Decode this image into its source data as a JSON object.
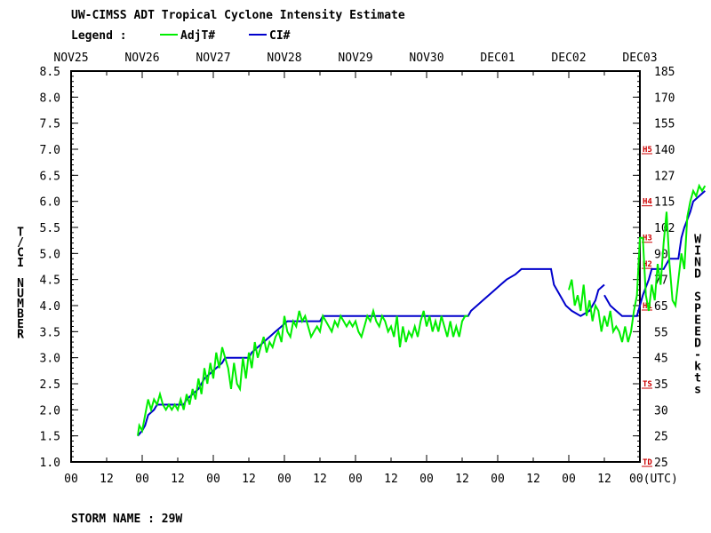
{
  "chart_data": {
    "type": "line",
    "title": "UW-CIMSS ADT Tropical Cyclone Intensity Estimate",
    "legend": {
      "label": "Legend :",
      "position": "top-left",
      "entries": [
        {
          "name": "AdjT#",
          "color": "#00ee00"
        },
        {
          "name": "CI#",
          "color": "#0000cc"
        }
      ]
    },
    "x_date_labels": [
      "NOV25",
      "NOV26",
      "NOV27",
      "NOV28",
      "NOV29",
      "NOV30",
      "DEC01",
      "DEC02",
      "DEC03"
    ],
    "x_hour_labels": [
      "00",
      "12",
      "00",
      "12",
      "00",
      "12",
      "00",
      "12",
      "00",
      "12",
      "00",
      "12",
      "00",
      "12",
      "00",
      "12"
    ],
    "x_last_label": "00(UTC)",
    "xlim_hours": [
      0,
      192
    ],
    "ylabel": "T/CI NUMBER",
    "y2label": "WIND SPEED-kts",
    "ylim": [
      1.0,
      8.5
    ],
    "yticks": [
      "1.0",
      "1.5",
      "2.0",
      "2.5",
      "3.0",
      "3.5",
      "4.0",
      "4.5",
      "5.0",
      "5.5",
      "6.0",
      "6.5",
      "7.0",
      "7.5",
      "8.0",
      "8.5"
    ],
    "y2ticks": [
      {
        "t": 1.0,
        "label": "25"
      },
      {
        "t": 1.5,
        "label": "25"
      },
      {
        "t": 2.0,
        "label": "30"
      },
      {
        "t": 2.5,
        "label": "35"
      },
      {
        "t": 3.0,
        "label": "45"
      },
      {
        "t": 3.5,
        "label": "55"
      },
      {
        "t": 4.0,
        "label": "65"
      },
      {
        "t": 4.5,
        "label": "77"
      },
      {
        "t": 5.0,
        "label": "90"
      },
      {
        "t": 5.5,
        "label": "102"
      },
      {
        "t": 6.0,
        "label": "115"
      },
      {
        "t": 6.5,
        "label": "127"
      },
      {
        "t": 7.0,
        "label": "140"
      },
      {
        "t": 7.5,
        "label": "155"
      },
      {
        "t": 8.0,
        "label": "170"
      },
      {
        "t": 8.5,
        "label": "185"
      }
    ],
    "category_marks": [
      {
        "t": 1.0,
        "label": "TD"
      },
      {
        "t": 2.5,
        "label": "TS"
      },
      {
        "t": 4.0,
        "label": "H1"
      },
      {
        "t": 4.8,
        "label": "H2"
      },
      {
        "t": 5.3,
        "label": "H3"
      },
      {
        "t": 6.0,
        "label": "H4"
      },
      {
        "t": 7.0,
        "label": "H5"
      }
    ],
    "grid": false,
    "series": [
      {
        "name": "AdjT#",
        "color": "#00ee00",
        "points": [
          [
            22.5,
            1.5
          ],
          [
            23,
            1.7
          ],
          [
            24,
            1.6
          ],
          [
            25,
            1.9
          ],
          [
            26,
            2.2
          ],
          [
            27,
            2.0
          ],
          [
            28,
            2.2
          ],
          [
            29,
            2.1
          ],
          [
            30,
            2.3
          ],
          [
            31,
            2.1
          ],
          [
            32,
            2.0
          ],
          [
            33,
            2.1
          ],
          [
            34,
            2.0
          ],
          [
            35,
            2.1
          ],
          [
            36,
            2.0
          ],
          [
            37,
            2.2
          ],
          [
            38,
            2.0
          ],
          [
            39,
            2.3
          ],
          [
            40,
            2.1
          ],
          [
            41,
            2.4
          ],
          [
            42,
            2.2
          ],
          [
            43,
            2.6
          ],
          [
            44,
            2.3
          ],
          [
            45,
            2.8
          ],
          [
            46,
            2.5
          ],
          [
            47,
            2.9
          ],
          [
            48,
            2.6
          ],
          [
            49,
            3.1
          ],
          [
            50,
            2.8
          ],
          [
            51,
            3.2
          ],
          [
            52,
            3.0
          ],
          [
            53,
            2.8
          ],
          [
            54,
            2.4
          ],
          [
            55,
            2.9
          ],
          [
            56,
            2.5
          ],
          [
            57,
            2.4
          ],
          [
            58,
            3.0
          ],
          [
            59,
            2.6
          ],
          [
            60,
            3.1
          ],
          [
            61,
            2.8
          ],
          [
            62,
            3.3
          ],
          [
            63,
            3.0
          ],
          [
            64,
            3.2
          ],
          [
            65,
            3.4
          ],
          [
            66,
            3.1
          ],
          [
            67,
            3.3
          ],
          [
            68,
            3.2
          ],
          [
            69,
            3.4
          ],
          [
            70,
            3.5
          ],
          [
            71,
            3.3
          ],
          [
            72,
            3.8
          ],
          [
            73,
            3.5
          ],
          [
            74,
            3.4
          ],
          [
            75,
            3.7
          ],
          [
            76,
            3.6
          ],
          [
            77,
            3.9
          ],
          [
            78,
            3.7
          ],
          [
            79,
            3.8
          ],
          [
            80,
            3.6
          ],
          [
            81,
            3.4
          ],
          [
            82,
            3.5
          ],
          [
            83,
            3.6
          ],
          [
            84,
            3.5
          ],
          [
            85,
            3.8
          ],
          [
            86,
            3.7
          ],
          [
            87,
            3.6
          ],
          [
            88,
            3.5
          ],
          [
            89,
            3.7
          ],
          [
            90,
            3.6
          ],
          [
            91,
            3.8
          ],
          [
            92,
            3.7
          ],
          [
            93,
            3.6
          ],
          [
            94,
            3.7
          ],
          [
            95,
            3.6
          ],
          [
            96,
            3.7
          ],
          [
            97,
            3.5
          ],
          [
            98,
            3.4
          ],
          [
            99,
            3.6
          ],
          [
            100,
            3.8
          ],
          [
            101,
            3.7
          ],
          [
            102,
            3.9
          ],
          [
            103,
            3.7
          ],
          [
            104,
            3.6
          ],
          [
            105,
            3.8
          ],
          [
            106,
            3.7
          ],
          [
            107,
            3.5
          ],
          [
            108,
            3.6
          ],
          [
            109,
            3.4
          ],
          [
            110,
            3.8
          ],
          [
            111,
            3.2
          ],
          [
            112,
            3.6
          ],
          [
            113,
            3.3
          ],
          [
            114,
            3.5
          ],
          [
            115,
            3.4
          ],
          [
            116,
            3.6
          ],
          [
            117,
            3.4
          ],
          [
            118,
            3.7
          ],
          [
            119,
            3.9
          ],
          [
            120,
            3.6
          ],
          [
            121,
            3.8
          ],
          [
            122,
            3.5
          ],
          [
            123,
            3.7
          ],
          [
            124,
            3.5
          ],
          [
            125,
            3.8
          ],
          [
            126,
            3.6
          ],
          [
            127,
            3.4
          ],
          [
            128,
            3.7
          ],
          [
            129,
            3.4
          ],
          [
            130,
            3.6
          ],
          [
            131,
            3.4
          ],
          [
            132,
            3.7
          ],
          [
            133,
            3.8
          ],
          [
            134,
            3.8
          ]
        ],
        "points_late": [
          [
            168,
            4.3
          ],
          [
            169,
            4.5
          ],
          [
            170,
            4.0
          ],
          [
            171,
            4.2
          ],
          [
            172,
            3.9
          ],
          [
            173,
            4.4
          ],
          [
            174,
            3.8
          ],
          [
            175,
            4.1
          ],
          [
            176,
            3.7
          ],
          [
            177,
            4.0
          ],
          [
            178,
            3.9
          ],
          [
            179,
            3.5
          ],
          [
            180,
            3.8
          ],
          [
            181,
            3.6
          ],
          [
            182,
            3.9
          ],
          [
            183,
            3.5
          ],
          [
            184,
            3.6
          ],
          [
            185,
            3.5
          ],
          [
            186,
            3.3
          ],
          [
            187,
            3.6
          ],
          [
            188,
            3.3
          ],
          [
            189,
            3.5
          ],
          [
            190,
            3.9
          ],
          [
            191,
            4.2
          ],
          [
            192,
            5.3
          ],
          [
            193,
            5.3
          ],
          [
            194,
            4.2
          ],
          [
            195,
            3.9
          ],
          [
            196,
            4.4
          ],
          [
            197,
            4.1
          ],
          [
            198,
            4.8
          ],
          [
            199,
            4.4
          ],
          [
            200,
            5.2
          ],
          [
            201,
            5.8
          ],
          [
            202,
            4.8
          ],
          [
            203,
            4.1
          ],
          [
            204,
            4.0
          ],
          [
            205,
            4.5
          ],
          [
            206,
            5.0
          ],
          [
            207,
            4.7
          ],
          [
            208,
            5.7
          ],
          [
            209,
            6.0
          ],
          [
            210,
            6.2
          ],
          [
            211,
            6.1
          ],
          [
            212,
            6.3
          ],
          [
            213,
            6.2
          ],
          [
            214,
            6.3
          ]
        ]
      },
      {
        "name": "CI#",
        "color": "#0000cc",
        "points": [
          [
            22.5,
            1.5
          ],
          [
            24,
            1.6
          ],
          [
            25,
            1.7
          ],
          [
            26,
            1.9
          ],
          [
            28,
            2.0
          ],
          [
            29,
            2.1
          ],
          [
            38,
            2.1
          ],
          [
            39,
            2.2
          ],
          [
            41,
            2.3
          ],
          [
            43,
            2.4
          ],
          [
            45,
            2.6
          ],
          [
            47,
            2.7
          ],
          [
            49,
            2.8
          ],
          [
            51,
            2.9
          ],
          [
            52,
            3.0
          ],
          [
            60,
            3.0
          ],
          [
            61,
            3.1
          ],
          [
            63,
            3.2
          ],
          [
            65,
            3.3
          ],
          [
            67,
            3.4
          ],
          [
            69,
            3.5
          ],
          [
            71,
            3.6
          ],
          [
            73,
            3.7
          ],
          [
            84,
            3.7
          ],
          [
            85,
            3.8
          ],
          [
            134,
            3.8
          ],
          [
            135,
            3.9
          ],
          [
            137,
            4.0
          ],
          [
            139,
            4.1
          ],
          [
            141,
            4.2
          ],
          [
            143,
            4.3
          ],
          [
            145,
            4.4
          ],
          [
            147,
            4.5
          ],
          [
            150,
            4.6
          ],
          [
            152,
            4.7
          ],
          [
            162,
            4.7
          ],
          [
            163,
            4.4
          ],
          [
            165,
            4.2
          ],
          [
            167,
            4.0
          ],
          [
            169,
            3.9
          ],
          [
            172,
            3.8
          ],
          [
            175,
            3.9
          ],
          [
            177,
            4.1
          ],
          [
            178,
            4.3
          ],
          [
            180,
            4.4
          ]
        ],
        "points_late": [
          [
            180,
            4.2
          ],
          [
            182,
            4.0
          ],
          [
            184,
            3.9
          ],
          [
            186,
            3.8
          ],
          [
            191,
            3.8
          ],
          [
            192,
            4.0
          ],
          [
            193,
            4.2
          ],
          [
            195,
            4.5
          ],
          [
            196,
            4.7
          ],
          [
            200,
            4.7
          ],
          [
            202,
            4.9
          ],
          [
            205,
            4.9
          ],
          [
            206,
            5.3
          ],
          [
            207,
            5.5
          ],
          [
            209,
            5.8
          ],
          [
            210,
            6.0
          ],
          [
            212,
            6.1
          ],
          [
            214,
            6.2
          ]
        ]
      }
    ]
  },
  "footer": {
    "storm_name": "STORM NAME : 29W"
  }
}
